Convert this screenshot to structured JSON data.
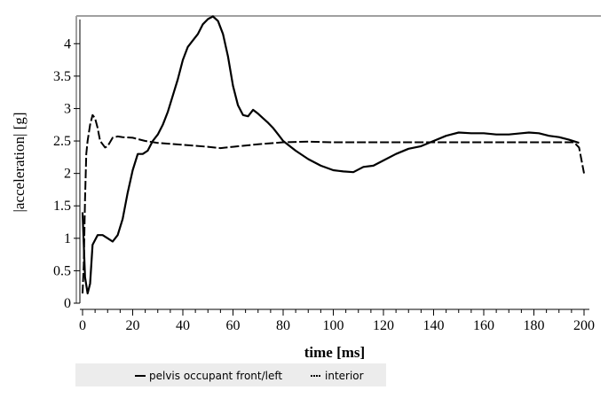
{
  "chart_data": {
    "type": "line",
    "xlabel": "time [ms]",
    "ylabel": "|acceleration| [g]",
    "xlim": [
      0,
      200
    ],
    "ylim": [
      0,
      4.4
    ],
    "xticks": [
      0,
      20,
      40,
      60,
      80,
      100,
      120,
      140,
      160,
      180,
      200
    ],
    "yticks": [
      0,
      0.5,
      1,
      1.5,
      2,
      2.5,
      3,
      3.5,
      4
    ],
    "ytick_labels": [
      "0",
      "0.5",
      "1",
      "1.5",
      "2",
      "2.5",
      "3",
      "3.5",
      "4"
    ],
    "grid": false,
    "legend": "bottom",
    "series": [
      {
        "name": "pelvis occupant front/left",
        "style": "solid",
        "color": "#000000",
        "x": [
          0,
          1,
          2,
          3,
          4,
          6,
          8,
          10,
          12,
          14,
          16,
          18,
          20,
          22,
          24,
          26,
          28,
          30,
          32,
          34,
          36,
          38,
          40,
          42,
          44,
          46,
          48,
          50,
          52,
          54,
          56,
          58,
          60,
          62,
          64,
          66,
          68,
          70,
          72,
          74,
          76,
          78,
          80,
          85,
          90,
          95,
          100,
          104,
          108,
          112,
          116,
          120,
          125,
          130,
          135,
          140,
          145,
          150,
          155,
          160,
          165,
          170,
          175,
          178,
          182,
          186,
          190,
          194,
          198
        ],
        "y": [
          1.4,
          0.4,
          0.15,
          0.3,
          0.9,
          1.05,
          1.05,
          1.0,
          0.95,
          1.05,
          1.3,
          1.7,
          2.05,
          2.3,
          2.3,
          2.35,
          2.5,
          2.6,
          2.75,
          2.95,
          3.2,
          3.45,
          3.75,
          3.95,
          4.05,
          4.15,
          4.3,
          4.38,
          4.42,
          4.35,
          4.15,
          3.8,
          3.35,
          3.05,
          2.9,
          2.88,
          2.98,
          2.92,
          2.85,
          2.78,
          2.7,
          2.6,
          2.5,
          2.35,
          2.22,
          2.12,
          2.05,
          2.03,
          2.02,
          2.1,
          2.12,
          2.2,
          2.3,
          2.38,
          2.42,
          2.5,
          2.58,
          2.63,
          2.62,
          2.62,
          2.6,
          2.6,
          2.62,
          2.63,
          2.62,
          2.58,
          2.56,
          2.52,
          2.47
        ]
      },
      {
        "name": "interior",
        "style": "dashed",
        "color": "#000000",
        "x": [
          0,
          0.5,
          1,
          1.5,
          2,
          3,
          4,
          5,
          6,
          7,
          8,
          9,
          10,
          12,
          14,
          16,
          20,
          25,
          30,
          40,
          50,
          55,
          60,
          70,
          80,
          90,
          100,
          120,
          140,
          160,
          180,
          190,
          196,
          198,
          199,
          200
        ],
        "y": [
          0.15,
          0.6,
          1.6,
          2.3,
          2.5,
          2.75,
          2.9,
          2.85,
          2.7,
          2.5,
          2.45,
          2.4,
          2.42,
          2.55,
          2.57,
          2.56,
          2.55,
          2.5,
          2.47,
          2.44,
          2.41,
          2.39,
          2.41,
          2.45,
          2.48,
          2.49,
          2.48,
          2.48,
          2.48,
          2.48,
          2.48,
          2.48,
          2.48,
          2.4,
          2.2,
          2.0
        ]
      }
    ]
  }
}
